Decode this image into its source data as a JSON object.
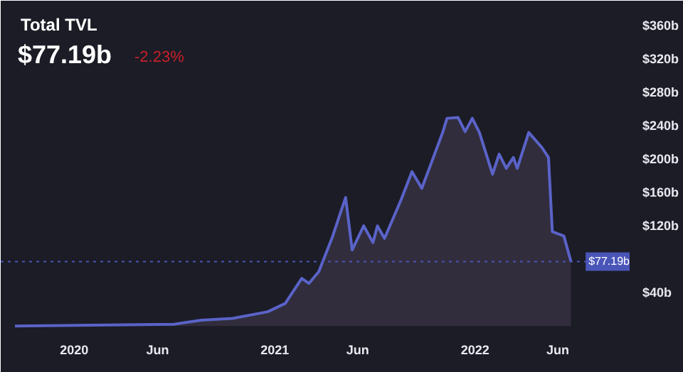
{
  "chart_data": {
    "type": "area",
    "title": "Total TVL",
    "subtitle": "$77.19b",
    "annotations": [
      "-2.23%"
    ],
    "x": [
      "2019-09-15",
      "2020-07-01",
      "2020-08-20",
      "2020-10-16",
      "2020-12-19",
      "2021-01-20",
      "2021-02-19",
      "2021-03-04",
      "2021-03-22",
      "2021-04-15",
      "2021-05-10",
      "2021-05-22",
      "2021-06-12",
      "2021-06-29",
      "2021-07-07",
      "2021-07-20",
      "2021-08-19",
      "2021-09-08",
      "2021-09-26",
      "2021-11-03",
      "2021-11-11",
      "2021-12-01",
      "2021-12-14",
      "2021-12-27",
      "2022-01-09",
      "2022-02-02",
      "2022-02-14",
      "2022-02-27",
      "2022-03-12",
      "2022-03-19",
      "2022-04-09",
      "2022-05-03",
      "2022-05-15",
      "2022-05-22",
      "2022-06-12",
      "2022-06-25"
    ],
    "series": [
      {
        "color": "#5a63c8",
        "values": [
          0,
          2,
          7,
          9,
          17,
          27,
          57,
          51,
          65,
          105,
          154,
          91,
          120,
          100,
          120,
          105,
          151,
          185,
          165,
          232,
          249,
          250,
          233,
          249,
          232,
          182,
          206,
          189,
          202,
          189,
          232,
          214,
          202,
          113,
          108,
          77.19
        ]
      }
    ],
    "xlim": [
      "2019-08-20",
      "2022-10-10"
    ],
    "xticks": [
      {
        "value": "2020-01-01",
        "label": "2020"
      },
      {
        "value": "2020-06-01",
        "label": "Jun"
      },
      {
        "value": "2021-01-01",
        "label": "2021"
      },
      {
        "value": "2021-06-01",
        "label": "Jun"
      },
      {
        "value": "2022-01-01",
        "label": "2022"
      },
      {
        "value": "2022-06-01",
        "label": "Jun"
      }
    ],
    "ylim": [
      -5,
      390
    ],
    "yticks": [
      {
        "value": 40,
        "label": "$40b"
      },
      {
        "value": 120,
        "label": "$120b"
      },
      {
        "value": 160,
        "label": "$160b"
      },
      {
        "value": 200,
        "label": "$200b"
      },
      {
        "value": 240,
        "label": "$240b"
      },
      {
        "value": 280,
        "label": "$280b"
      },
      {
        "value": 320,
        "label": "$320b"
      },
      {
        "value": 360,
        "label": "$360b"
      }
    ],
    "ref_lines": [
      {
        "axis": "y",
        "value": 77.19,
        "label": "$77.19b",
        "color": "#4a55b8",
        "line_style": "dotted"
      }
    ],
    "grid": false
  }
}
